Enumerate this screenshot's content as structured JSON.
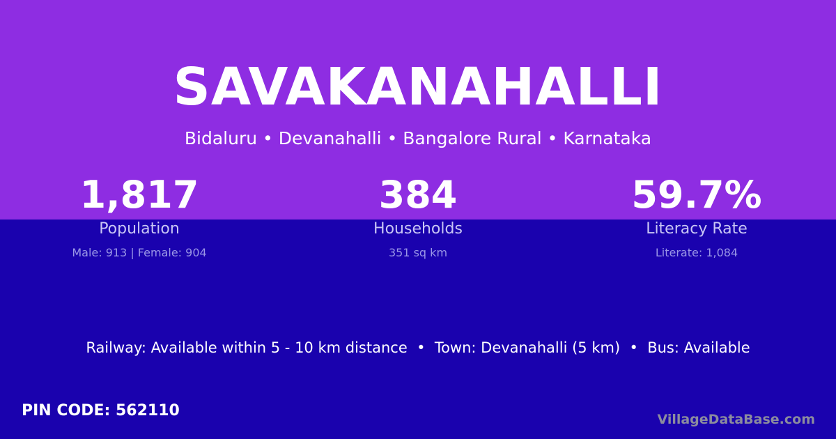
{
  "colors": {
    "top_bg": "#8e2de2",
    "bottom_bg": "#1a02ae"
  },
  "title": "SAVAKANAHALLI",
  "subtitle": "Bidaluru • Devanahalli • Bangalore Rural • Karnataka",
  "stats": [
    {
      "value": "1,817",
      "label": "Population",
      "detail": "Male: 913 | Female: 904"
    },
    {
      "value": "384",
      "label": "Households",
      "detail": "351 sq km"
    },
    {
      "value": "59.7%",
      "label": "Literacy Rate",
      "detail": "Literate: 1,084"
    }
  ],
  "amenities": "Railway: Available within 5 - 10 km distance  •  Town: Devanahalli (5 km)  •  Bus: Available",
  "pin_code": "PIN CODE: 562110",
  "brand": "VillageDataBase.com"
}
